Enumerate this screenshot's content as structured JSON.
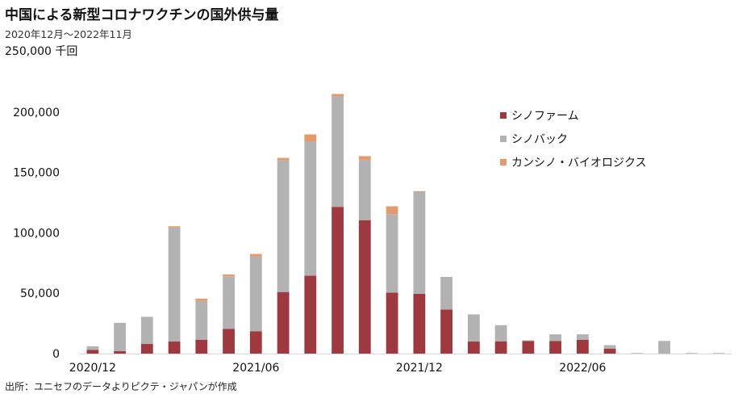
{
  "header": {
    "title": "中国による新型コロナワクチンの国外供与量",
    "subtitle": "2020年12月～2022年11月",
    "unit": "250,000 千回"
  },
  "footer": {
    "source": "出所：ユニセフのデータよりピクテ・ジャパンが作成"
  },
  "chart_data": {
    "type": "bar",
    "stacked": true,
    "categories": [
      "2020/12",
      "2021/01",
      "2021/02",
      "2021/03",
      "2021/04",
      "2021/05",
      "2021/06",
      "2021/07",
      "2021/08",
      "2021/09",
      "2021/10",
      "2021/11",
      "2021/12",
      "2022/01",
      "2022/02",
      "2022/03",
      "2022/04",
      "2022/05",
      "2022/06",
      "2022/07",
      "2022/08",
      "2022/09",
      "2022/10",
      "2022/11"
    ],
    "x_tick_labels": [
      {
        "index": 0,
        "label": "2020/12"
      },
      {
        "index": 6,
        "label": "2021/06"
      },
      {
        "index": 12,
        "label": "2021/12"
      },
      {
        "index": 18,
        "label": "2022/06"
      }
    ],
    "series": [
      {
        "name": "シノファーム",
        "color": "#9e3a3f",
        "values": [
          3000,
          2000,
          8000,
          10000,
          11500,
          20500,
          18500,
          51000,
          64500,
          121500,
          110500,
          50500,
          49500,
          36500,
          10000,
          10000,
          10500,
          10500,
          11500,
          4000,
          0,
          0,
          0,
          0
        ]
      },
      {
        "name": "シノバック",
        "color": "#b2b2b2",
        "values": [
          3000,
          23500,
          22500,
          94500,
          32000,
          43500,
          62000,
          109000,
          111000,
          91500,
          50000,
          65000,
          84500,
          27000,
          22500,
          13500,
          500,
          5500,
          4500,
          3000,
          500,
          10500,
          500,
          500
        ]
      },
      {
        "name": "カンシノ・バイオロジクス",
        "color": "#e59a6b",
        "values": [
          0,
          0,
          0,
          1000,
          2000,
          1500,
          2000,
          2000,
          6000,
          2000,
          3000,
          6500,
          500,
          0,
          0,
          0,
          0,
          0,
          0,
          0,
          0,
          0,
          0,
          0
        ]
      }
    ],
    "xlabel": "",
    "ylabel": "",
    "y_ticks": [
      "0",
      "50,000",
      "100,000",
      "150,000",
      "200,000"
    ],
    "ylim": [
      0,
      250000
    ],
    "grid": false,
    "legend_position": "top-right"
  }
}
